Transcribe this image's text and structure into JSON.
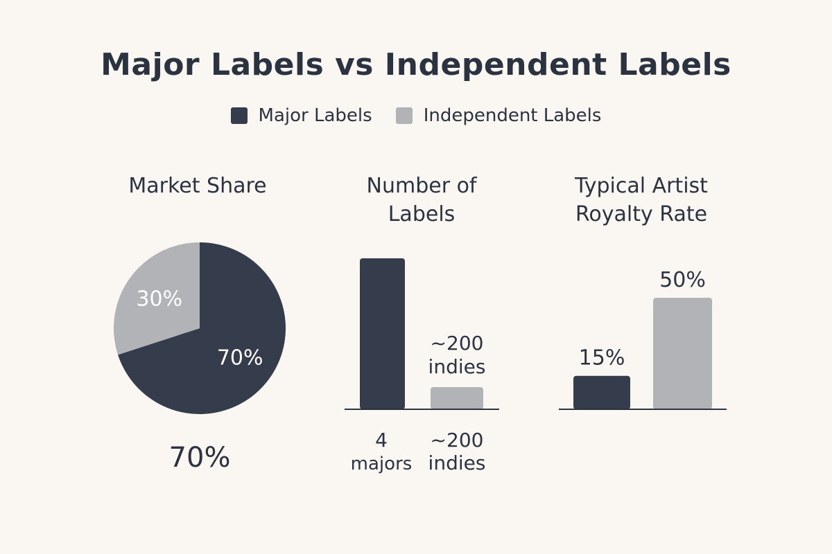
{
  "title": "Major Labels vs Independent Labels",
  "legend": [
    {
      "label": "Major Labels",
      "color": "#353c4b"
    },
    {
      "label": "Independent Labels",
      "color": "#b1b3b7"
    }
  ],
  "colors": {
    "major": "#353c4b",
    "indie": "#b1b3b7",
    "text": "#2b3240",
    "background": "#faf7f3"
  },
  "chart_data": [
    {
      "type": "pie",
      "title": "Market Share",
      "slices": [
        {
          "series": "Major Labels",
          "value": 70,
          "label": "70%"
        },
        {
          "series": "Independent Labels",
          "value": 30,
          "label": "30%"
        }
      ],
      "caption": "70%"
    },
    {
      "type": "bar",
      "title_lines": [
        "Number of",
        "Labels"
      ],
      "categories": [
        "Major Labels",
        "Independent Labels"
      ],
      "values": [
        4,
        200
      ],
      "data_labels": [
        "",
        "~200 indies"
      ],
      "data_label_lines": [
        [],
        [
          "~200",
          "indies"
        ]
      ],
      "tick_labels": [
        [
          "4",
          "majors"
        ],
        [
          "~200",
          "indies"
        ]
      ],
      "note": "not drawn to a linear scale"
    },
    {
      "type": "bar",
      "title_lines": [
        "Typical Artist",
        "Royalty Rate"
      ],
      "categories": [
        "Major Labels",
        "Independent Labels"
      ],
      "values": [
        15,
        50
      ],
      "data_labels": [
        "15%",
        "50%"
      ]
    }
  ]
}
